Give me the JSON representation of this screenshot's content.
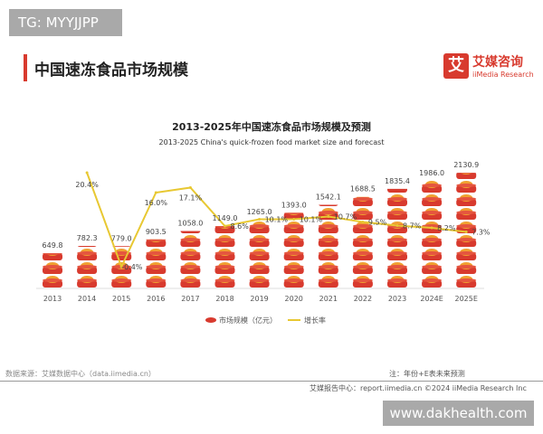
{
  "watermark_top": "TG: MYYJJPP",
  "page_title": "中国速冻食品市场规模",
  "logo": {
    "mark": "艾",
    "cn": "艾媒咨询",
    "en": "iiMedia Research"
  },
  "chart_data": {
    "type": "bar+line",
    "title": "2013-2025年中国速冻食品市场规模及预测",
    "subtitle": "2013-2025 China's quick-frozen food market size and forecast",
    "categories": [
      "2013",
      "2014",
      "2015",
      "2016",
      "2017",
      "2018",
      "2019",
      "2020",
      "2021",
      "2022",
      "2023",
      "2024E",
      "2025E"
    ],
    "series": [
      {
        "name": "市场规模（亿元）",
        "type": "pictorial-bar",
        "color": "#d83a2e",
        "values": [
          649.8,
          782.3,
          779.0,
          903.5,
          1058.0,
          1149.0,
          1265.0,
          1393.0,
          1542.1,
          1688.5,
          1835.4,
          1986.0,
          2130.9
        ],
        "labels": [
          "649.8",
          "782.3",
          "779.0",
          "903.5",
          "1058.0",
          "1149.0",
          "1265.0",
          "1393.0",
          "1542.1",
          "1688.5",
          "1835.4",
          "1986.0",
          "2130.9"
        ]
      },
      {
        "name": "增长率",
        "type": "line",
        "color": "#e8c832",
        "unit": "%",
        "values": [
          null,
          20.4,
          -0.4,
          16.0,
          17.1,
          8.6,
          10.1,
          10.1,
          10.7,
          9.5,
          8.7,
          8.2,
          7.3
        ],
        "labels": [
          "",
          "20.4%",
          "-0.4%",
          "16.0%",
          "17.1%",
          "8.6%",
          "10.1%",
          "10.1%",
          "10.7%",
          "9.5%",
          "8.7%",
          "8.2%",
          "7.3%"
        ]
      }
    ],
    "legend_position": "bottom",
    "grid": false
  },
  "footer": {
    "source": "数据来源：艾媒数据中心（data.iimedia.cn）",
    "note": "注：年份+E表未来预测",
    "report": "艾媒报告中心：report.iimedia.cn    ©2024  iiMedia Research  Inc"
  },
  "watermark_bottom": "www.dakhealth.com"
}
